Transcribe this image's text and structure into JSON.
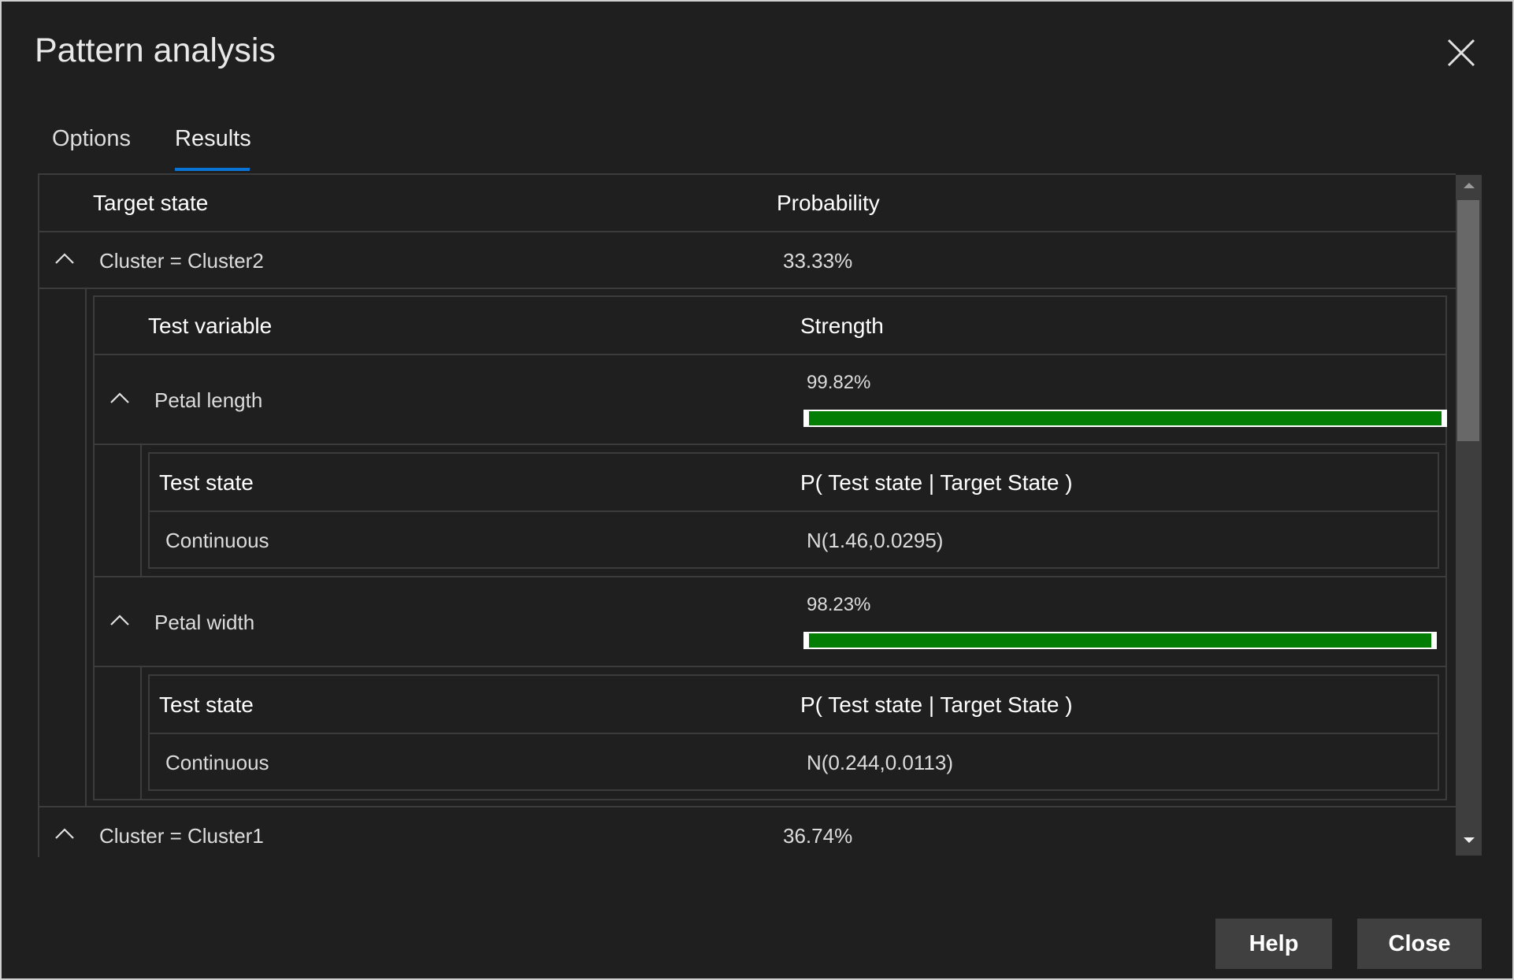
{
  "dialog": {
    "title": "Pattern analysis",
    "close_icon": "close-icon"
  },
  "tabs": [
    {
      "label": "Options",
      "active": false
    },
    {
      "label": "Results",
      "active": true
    }
  ],
  "accent_color": "#0a74d6",
  "bar_color": "#047d04",
  "table": {
    "headers": {
      "target_state": "Target state",
      "probability": "Probability"
    },
    "clusters": [
      {
        "label": "Cluster = Cluster2",
        "probability": "33.33%",
        "expanded": true,
        "sub_headers": {
          "test_variable": "Test variable",
          "strength": "Strength"
        },
        "variables": [
          {
            "name": "Petal length",
            "strength_label": "99.82%",
            "strength": 99.82,
            "state_headers": {
              "test_state": "Test state",
              "p": "P( Test state | Target State )"
            },
            "states": [
              {
                "state": "Continuous",
                "p": "N(1.46,0.0295)"
              }
            ]
          },
          {
            "name": "Petal width",
            "strength_label": "98.23%",
            "strength": 98.23,
            "state_headers": {
              "test_state": "Test state",
              "p": "P( Test state | Target State )"
            },
            "states": [
              {
                "state": "Continuous",
                "p": "N(0.244,0.0113)"
              }
            ]
          }
        ]
      },
      {
        "label": "Cluster = Cluster1",
        "probability": "36.74%",
        "expanded": true
      }
    ]
  },
  "buttons": {
    "help": "Help",
    "close": "Close"
  }
}
